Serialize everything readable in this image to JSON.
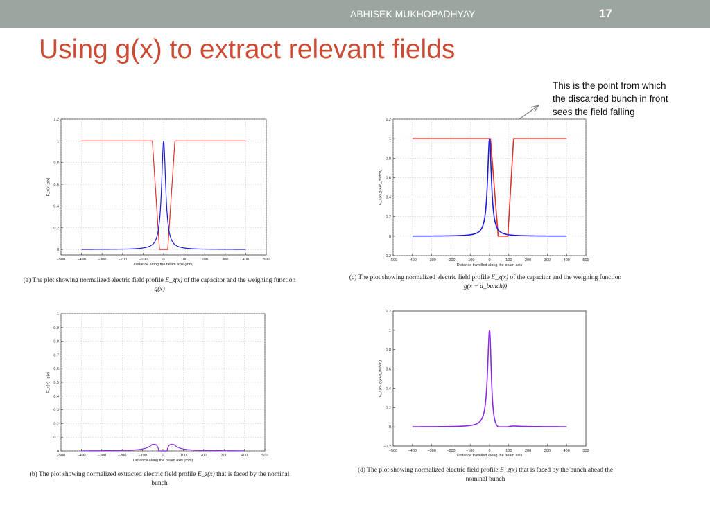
{
  "header": {
    "author": "ABHISEK MUKHOPADHYAY",
    "page_number": "17"
  },
  "slide": {
    "title": "Using g(x) to extract relevant fields"
  },
  "annotation": {
    "text": "This is the point from which the discarded bunch in front sees the field falling"
  },
  "colors": {
    "title": "#cc4b35",
    "topbar": "#9aa69e",
    "red_series": "#e0322b",
    "blue_series": "#1a1adb",
    "purple_series": "#8a2be2"
  },
  "captions": {
    "a": {
      "prefix": "(a)  The plot showing normalized electric field profile ",
      "math1": "E_z(x)",
      "middle": " of the capacitor and the weighing function ",
      "math2": "g(x)"
    },
    "b": {
      "prefix": "(b)  The plot showing normalized extracted electric field profile ",
      "math1": "E_z(x)",
      "middle": " that is faced by the nominal bunch"
    },
    "c": {
      "prefix": "(c)  The plot showing normalized electric field profile ",
      "math1": "E_z(x)",
      "middle": " of the capacitor and the weighing function ",
      "math2": "g(x − d_bunch))"
    },
    "d": {
      "prefix": "(d)  The plot showing normalized electric field profile ",
      "math1": "E_z(x)",
      "middle": " that is faced by the bunch ahead the nominal bunch"
    }
  },
  "chart_data": [
    {
      "id": "a",
      "type": "line",
      "xlabel": "Distance along the beam axis (mm)",
      "ylabel": "E_z(x),g(x)",
      "xlim": [
        -500,
        500
      ],
      "ylim": [
        -0.05,
        1.2
      ],
      "xticks": [
        -500,
        -400,
        -300,
        -200,
        -100,
        0,
        100,
        200,
        300,
        400,
        500
      ],
      "yticks": [
        0,
        0.2,
        0.4,
        0.6,
        0.8,
        1,
        1.2
      ],
      "grid": true,
      "series": [
        {
          "kind": "gate",
          "color": "#e0322b",
          "x": [
            -400,
            -55,
            -20,
            20,
            55,
            400
          ],
          "y": [
            1,
            1,
            0,
            0,
            1,
            1
          ]
        },
        {
          "kind": "lorentz",
          "color": "#1a1adb",
          "x_start": -400,
          "x_end": 400,
          "center": 0,
          "width": 12,
          "peak": 1
        }
      ]
    },
    {
      "id": "b",
      "type": "line",
      "xlabel": "Distance along the beam axis (mm)",
      "ylabel": "E_z(x) . g(x)",
      "xlim": [
        -500,
        500
      ],
      "ylim": [
        0,
        1
      ],
      "xticks": [
        -500,
        -400,
        -300,
        -200,
        -100,
        0,
        100,
        200,
        300,
        400,
        500
      ],
      "yticks": [
        0,
        0.1,
        0.2,
        0.3,
        0.4,
        0.5,
        0.6,
        0.7,
        0.8,
        0.9,
        1
      ],
      "grid": true,
      "series": [
        {
          "kind": "product",
          "color": "#8a2be2",
          "x_start": -400,
          "x_end": 400,
          "center": 0,
          "width": 12,
          "gate_x": [
            -400,
            -55,
            -20,
            20,
            55,
            400
          ],
          "gate_y": [
            1,
            1,
            0,
            0,
            1,
            1
          ]
        }
      ]
    },
    {
      "id": "c",
      "type": "line",
      "xlabel": "Distance travelled along the beam axis",
      "ylabel": "E_z(x),g(x+d_bunch)",
      "xlim": [
        -500,
        500
      ],
      "ylim": [
        -0.2,
        1.2
      ],
      "xticks": [
        -500,
        -400,
        -300,
        -200,
        -100,
        0,
        100,
        200,
        300,
        400,
        500
      ],
      "yticks": [
        -0.2,
        0,
        0.2,
        0.4,
        0.6,
        0.8,
        1,
        1.2
      ],
      "grid": true,
      "series": [
        {
          "kind": "gate",
          "color": "#e0322b",
          "x": [
            -400,
            5,
            45,
            95,
            125,
            400
          ],
          "y": [
            1,
            1,
            0,
            0,
            1,
            1
          ]
        },
        {
          "kind": "lorentz",
          "color": "#1a1adb",
          "x_start": -400,
          "x_end": 400,
          "center": 0,
          "width": 12,
          "peak": 1
        }
      ]
    },
    {
      "id": "d",
      "type": "line",
      "xlabel": "Distance travelled along the beam axis",
      "ylabel": "E_z(x)· g(x+d_bunch)",
      "xlim": [
        -500,
        500
      ],
      "ylim": [
        -0.2,
        1.2
      ],
      "xticks": [
        -500,
        -400,
        -300,
        -200,
        -100,
        0,
        100,
        200,
        300,
        400,
        500
      ],
      "yticks": [
        -0.2,
        0,
        0.2,
        0.4,
        0.6,
        0.8,
        1,
        1.2
      ],
      "grid": false,
      "series": [
        {
          "kind": "product",
          "color": "#8a2be2",
          "x_start": -400,
          "x_end": 400,
          "center": 0,
          "width": 12,
          "gate_x": [
            -400,
            5,
            45,
            95,
            125,
            400
          ],
          "gate_y": [
            1,
            1,
            0,
            0,
            1,
            1
          ]
        }
      ]
    }
  ]
}
